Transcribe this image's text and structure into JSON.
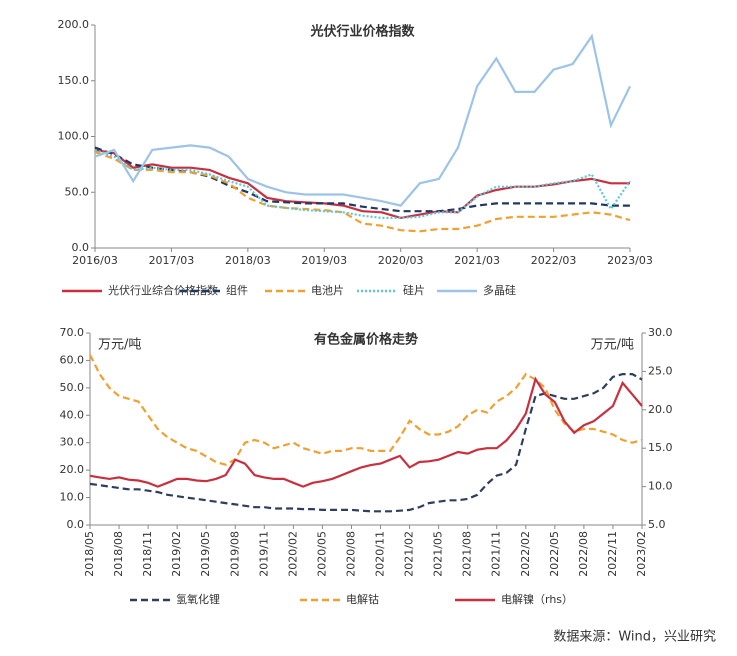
{
  "chart_data": [
    {
      "type": "line",
      "title": "光伏行业价格指数",
      "x": [
        "2016/03",
        "2016/06",
        "2016/09",
        "2016/12",
        "2017/03",
        "2017/06",
        "2017/09",
        "2017/12",
        "2018/03",
        "2018/06",
        "2018/09",
        "2018/12",
        "2019/03",
        "2019/06",
        "2019/09",
        "2019/12",
        "2020/03",
        "2020/06",
        "2020/09",
        "2020/12",
        "2021/03",
        "2021/06",
        "2021/09",
        "2021/12",
        "2022/03",
        "2022/06",
        "2022/09",
        "2022/12",
        "2023/03"
      ],
      "xticks": [
        "2016/03",
        "2017/03",
        "2018/03",
        "2019/03",
        "2020/03",
        "2021/03",
        "2022/03",
        "2023/03"
      ],
      "ylim": [
        0,
        200
      ],
      "yticks": [
        {
          "value": 0,
          "label": "0.0"
        },
        {
          "value": 50,
          "label": "50.0"
        },
        {
          "value": 100,
          "label": "100.0"
        },
        {
          "value": 150,
          "label": "150.0"
        },
        {
          "value": 200,
          "label": "200.0"
        }
      ],
      "series": [
        {
          "name": "光伏行业综合价格指数",
          "color": "#c8303f",
          "dash": "solid",
          "values": [
            88,
            85,
            72,
            75,
            72,
            72,
            70,
            63,
            58,
            45,
            42,
            41,
            40,
            38,
            33,
            32,
            27,
            30,
            33,
            32,
            47,
            52,
            55,
            55,
            57,
            60,
            62,
            58,
            58
          ]
        },
        {
          "name": "组件",
          "color": "#203864",
          "dash": "dashed",
          "values": [
            90,
            84,
            75,
            72,
            70,
            68,
            64,
            56,
            50,
            42,
            41,
            40,
            40,
            40,
            37,
            35,
            33,
            33,
            33,
            35,
            38,
            40,
            40,
            40,
            40,
            40,
            40,
            38,
            38
          ]
        },
        {
          "name": "电池片",
          "color": "#f0a030",
          "dash": "dashed",
          "values": [
            86,
            80,
            70,
            70,
            68,
            68,
            65,
            58,
            45,
            38,
            36,
            35,
            34,
            32,
            22,
            20,
            16,
            15,
            17,
            17,
            20,
            26,
            28,
            28,
            28,
            30,
            32,
            30,
            25
          ]
        },
        {
          "name": "硅片",
          "color": "#5bc8d8",
          "dash": "dotted",
          "values": [
            88,
            82,
            70,
            72,
            70,
            70,
            66,
            60,
            55,
            38,
            36,
            34,
            33,
            32,
            29,
            27,
            27,
            28,
            32,
            32,
            46,
            55,
            55,
            55,
            58,
            60,
            66,
            35,
            60
          ]
        },
        {
          "name": "多晶硅",
          "color": "#9dc3e6",
          "dash": "solid",
          "values": [
            82,
            88,
            60,
            88,
            90,
            92,
            90,
            82,
            62,
            55,
            50,
            48,
            48,
            48,
            45,
            42,
            38,
            58,
            62,
            90,
            145,
            170,
            140,
            140,
            160,
            165,
            190,
            110,
            145
          ]
        }
      ]
    },
    {
      "type": "line",
      "title": "有色金属价格走势",
      "y_label": "万元/吨",
      "y2_label": "万元/吨",
      "x": [
        "2018/05",
        "2018/06",
        "2018/07",
        "2018/08",
        "2018/09",
        "2018/10",
        "2018/11",
        "2018/12",
        "2019/01",
        "2019/02",
        "2019/03",
        "2019/04",
        "2019/05",
        "2019/06",
        "2019/07",
        "2019/08",
        "2019/09",
        "2019/10",
        "2019/11",
        "2019/12",
        "2020/01",
        "2020/02",
        "2020/03",
        "2020/04",
        "2020/05",
        "2020/06",
        "2020/07",
        "2020/08",
        "2020/09",
        "2020/10",
        "2020/11",
        "2020/12",
        "2021/01",
        "2021/02",
        "2021/03",
        "2021/04",
        "2021/05",
        "2021/06",
        "2021/07",
        "2021/08",
        "2021/09",
        "2021/10",
        "2021/11",
        "2021/12",
        "2022/01",
        "2022/02",
        "2022/03",
        "2022/04",
        "2022/05",
        "2022/06",
        "2022/07",
        "2022/08",
        "2022/09",
        "2022/10",
        "2022/11",
        "2022/12",
        "2023/01",
        "2023/02"
      ],
      "xticks": [
        "2018/05",
        "2018/08",
        "2018/11",
        "2019/02",
        "2019/05",
        "2019/08",
        "2019/11",
        "2020/02",
        "2020/05",
        "2020/08",
        "2020/11",
        "2021/02",
        "2021/05",
        "2021/08",
        "2021/11",
        "2022/02",
        "2022/05",
        "2022/08",
        "2022/11",
        "2023/02"
      ],
      "ylim": [
        0,
        70
      ],
      "yticks": [
        {
          "value": 0,
          "label": "0.0"
        },
        {
          "value": 10,
          "label": "10.0"
        },
        {
          "value": 20,
          "label": "20.0"
        },
        {
          "value": 30,
          "label": "30.0"
        },
        {
          "value": 40,
          "label": "40.0"
        },
        {
          "value": 50,
          "label": "50.0"
        },
        {
          "value": 60,
          "label": "60.0"
        },
        {
          "value": 70,
          "label": "70.0"
        }
      ],
      "y2lim": [
        5,
        30
      ],
      "y2ticks": [
        {
          "value": 5,
          "label": "5.0"
        },
        {
          "value": 10,
          "label": "10.0"
        },
        {
          "value": 15,
          "label": "15.0"
        },
        {
          "value": 20,
          "label": "20.0"
        },
        {
          "value": 25,
          "label": "25.0"
        },
        {
          "value": 30,
          "label": "30.0"
        }
      ],
      "series": [
        {
          "name": "氢氧化锂",
          "color": "#2f3e5c",
          "dash": "dashed",
          "values": [
            15,
            14.5,
            14,
            13.5,
            13,
            13,
            12.5,
            12,
            11,
            10.5,
            10,
            9.5,
            9,
            8.5,
            8,
            7.5,
            7,
            6.5,
            6.5,
            6,
            6,
            6,
            5.8,
            5.8,
            5.5,
            5.5,
            5.5,
            5.5,
            5.2,
            5,
            5,
            5,
            5.2,
            5.5,
            6.5,
            8,
            8.5,
            9,
            9,
            9.5,
            11,
            15,
            18,
            19,
            22,
            35,
            47,
            48,
            47,
            46,
            46,
            47,
            48,
            50,
            54,
            55,
            55,
            53
          ]
        },
        {
          "name": "电解钴",
          "color": "#f0a030",
          "dash": "dashed",
          "values": [
            62,
            55,
            50,
            47,
            46,
            45,
            40,
            35,
            32,
            30,
            28,
            27,
            25,
            23,
            22,
            24,
            30,
            31,
            30,
            28,
            29,
            30,
            28,
            27,
            26,
            27,
            27,
            28,
            28,
            27,
            27,
            27,
            32,
            38,
            35,
            33,
            33,
            34,
            36,
            40,
            42,
            41,
            45,
            47,
            50,
            55,
            53,
            50,
            42,
            37,
            34,
            35,
            35,
            34,
            33,
            31,
            30,
            31
          ]
        },
        {
          "name": "电解镍（rhs）",
          "color": "#c8303f",
          "dash": "solid",
          "axis": "y2",
          "values": [
            11.4,
            11.2,
            11,
            11.2,
            10.9,
            10.8,
            10.5,
            10,
            10.5,
            11,
            11,
            10.8,
            10.7,
            11,
            11.5,
            13.5,
            13,
            11.5,
            11.2,
            11,
            11,
            10.5,
            10,
            10.5,
            10.7,
            11,
            11.5,
            12,
            12.5,
            12.8,
            13,
            13.5,
            14,
            12.5,
            13.2,
            13.3,
            13.5,
            14,
            14.5,
            14.3,
            14.8,
            15,
            15,
            16,
            17.5,
            19.5,
            24,
            22,
            21,
            18.5,
            17,
            18,
            18.5,
            19.5,
            20.5,
            23.5,
            22,
            20.5
          ]
        }
      ]
    }
  ],
  "source": "数据来源：Wind，兴业研究"
}
